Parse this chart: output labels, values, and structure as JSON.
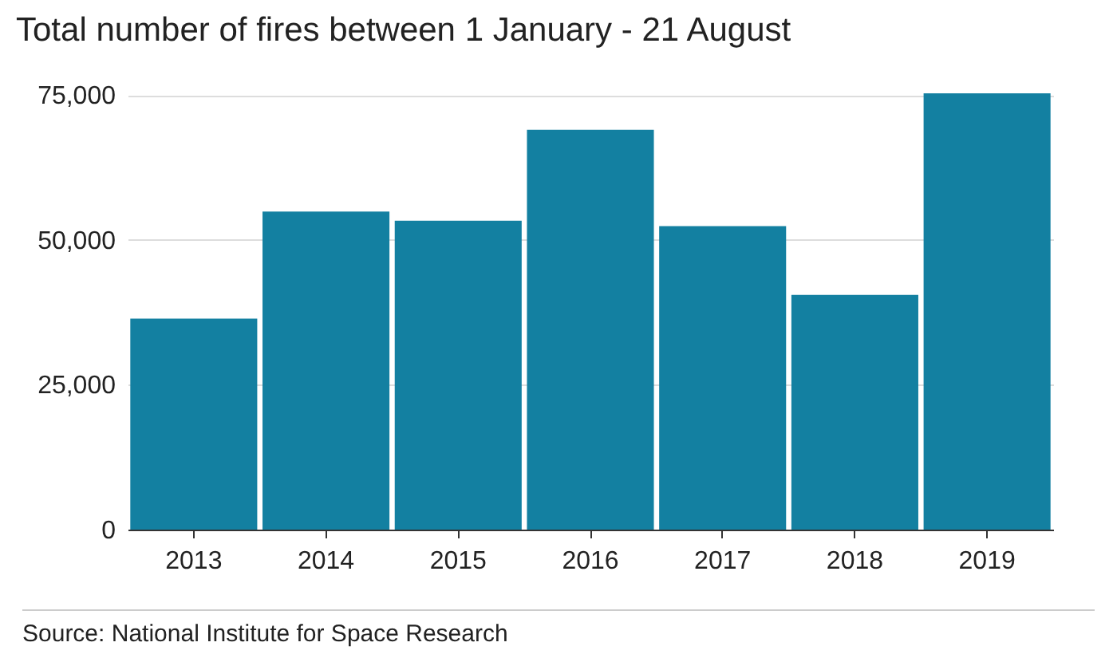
{
  "chart_data": {
    "type": "bar",
    "title": "Total number of fires between 1 January - 21 August",
    "categories": [
      "2013",
      "2014",
      "2015",
      "2016",
      "2017",
      "2018",
      "2019"
    ],
    "values": [
      36400,
      54900,
      53300,
      69000,
      52400,
      40500,
      75300
    ],
    "color": "#1380a1",
    "ylim": [
      0,
      76000
    ],
    "yticks": [
      {
        "value": 0,
        "label": "0"
      },
      {
        "value": 25000,
        "label": "25,000"
      },
      {
        "value": 50000,
        "label": "50,000"
      },
      {
        "value": 75000,
        "label": "75,000"
      }
    ],
    "grid": "y",
    "annotations": [
      "Source: National Institute for Space Research"
    ]
  }
}
